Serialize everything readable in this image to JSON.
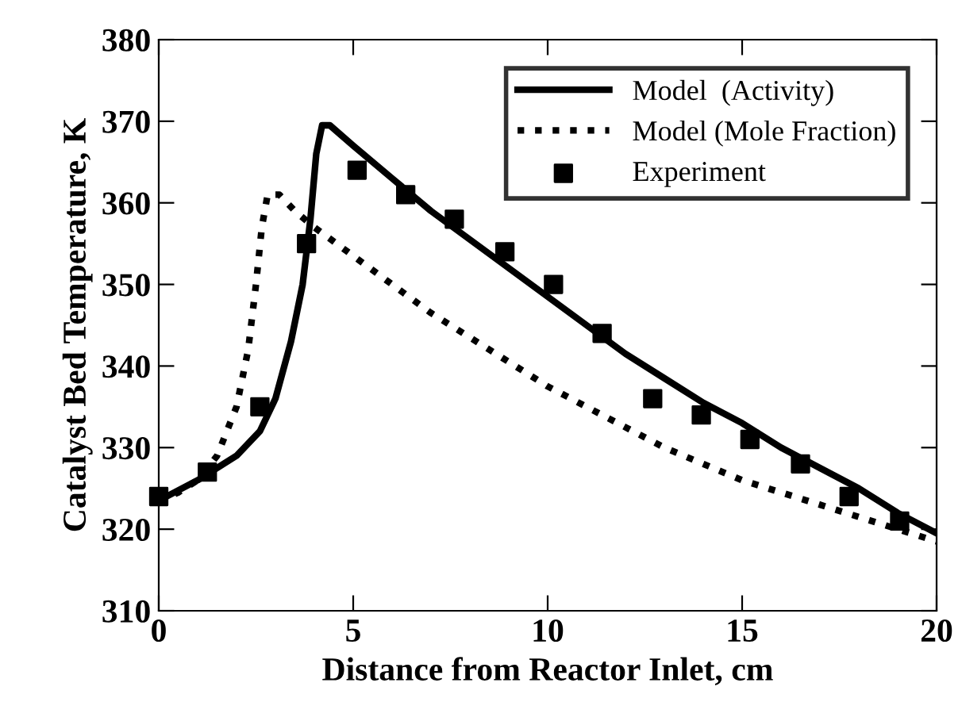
{
  "chart_data": {
    "type": "line",
    "xlabel": "Distance from Reactor Inlet, cm",
    "ylabel": "Catalyst Bed Temperature, K",
    "xlim": [
      0,
      20
    ],
    "ylim": [
      310,
      380
    ],
    "xticks": [
      0,
      5,
      10,
      15,
      20
    ],
    "yticks": [
      310,
      320,
      330,
      340,
      350,
      360,
      370,
      380
    ],
    "grid": false,
    "legend": "top right",
    "series": [
      {
        "name": "Model  (Activity)",
        "color": "#000000",
        "line_style": "solid",
        "marker": "none",
        "x": [
          0,
          1,
          2,
          2.6,
          3,
          3.4,
          3.7,
          3.9,
          4.05,
          4.2,
          4.4,
          5,
          6,
          7,
          8,
          9,
          10,
          11,
          12,
          13,
          14,
          15,
          16,
          17,
          18,
          19,
          20
        ],
        "values": [
          323.5,
          326,
          329,
          332,
          336,
          343,
          350,
          358,
          366,
          369.5,
          369.5,
          367,
          363,
          359,
          355.5,
          352,
          348.5,
          345,
          341.5,
          338.5,
          335.5,
          333,
          330,
          327.5,
          325,
          322,
          319.5
        ]
      },
      {
        "name": "Model (Mole Fraction)",
        "color": "#000000",
        "line_style": "dotted",
        "marker": "none",
        "x": [
          0,
          0.5,
          1,
          1.5,
          2,
          2.3,
          2.5,
          2.65,
          2.8,
          3.1,
          3.5,
          4,
          5,
          6,
          7,
          8,
          9,
          10,
          11,
          12,
          13,
          14,
          15,
          16,
          17,
          18,
          19,
          20
        ],
        "values": [
          323.5,
          324.5,
          326,
          329,
          335,
          342,
          350,
          357,
          361,
          361,
          359,
          357,
          353.5,
          350,
          346.5,
          343.5,
          340.5,
          337.5,
          335,
          332.5,
          330,
          328,
          326,
          324.5,
          323,
          321.5,
          320,
          318.5
        ]
      },
      {
        "name": "Experiment",
        "type": "scatter",
        "color": "#000000",
        "marker": "square",
        "x": [
          0,
          1.25,
          2.6,
          3.8,
          5.1,
          6.35,
          7.6,
          8.9,
          10.15,
          11.4,
          12.7,
          13.95,
          15.2,
          16.5,
          17.75,
          19.05
        ],
        "values": [
          324,
          327,
          335,
          355,
          364,
          361,
          358,
          354,
          350,
          344,
          336,
          334,
          331,
          328,
          324,
          321
        ]
      }
    ]
  }
}
